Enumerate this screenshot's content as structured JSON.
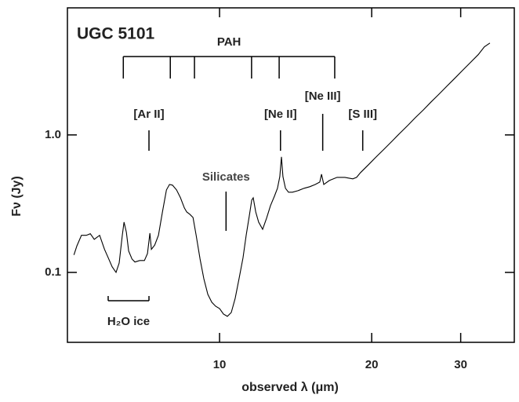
{
  "chart_data": {
    "type": "line",
    "title": "UGC 5101",
    "x_label": "observed λ (μm)",
    "y_label": "Fν (Jy)",
    "x_scale": "log",
    "y_scale": "log",
    "color": "#000000",
    "xlim": [
      5.0,
      38.3
    ],
    "ylim": [
      0.031,
      8.4
    ],
    "xticks": [
      10,
      20,
      30
    ],
    "yticks": [
      0.1,
      {
        "value": 1,
        "label": "1.0"
      }
    ],
    "x": [
      5.15,
      5.22,
      5.33,
      5.45,
      5.55,
      5.65,
      5.79,
      5.92,
      6.02,
      6.13,
      6.24,
      6.33,
      6.42,
      6.47,
      6.54,
      6.61,
      6.71,
      6.8,
      6.95,
      7.1,
      7.2,
      7.28,
      7.33,
      7.44,
      7.57,
      7.71,
      7.85,
      7.96,
      8.07,
      8.22,
      8.37,
      8.52,
      8.61,
      8.73,
      8.86,
      8.99,
      9.15,
      9.31,
      9.48,
      9.65,
      9.82,
      10.0,
      10.18,
      10.36,
      10.55,
      10.74,
      10.93,
      11.13,
      11.29,
      11.45,
      11.58,
      11.66,
      11.79,
      11.95,
      12.17,
      12.39,
      12.61,
      12.84,
      13.02,
      13.16,
      13.26,
      13.35,
      13.5,
      13.69,
      13.94,
      14.29,
      14.7,
      15.08,
      15.46,
      15.79,
      15.91,
      16.08,
      16.49,
      17.08,
      17.7,
      18.35,
      18.67,
      19.01,
      19.71,
      20.42,
      21.17,
      21.94,
      22.74,
      23.56,
      24.42,
      25.31,
      26.23,
      27.18,
      28.17,
      29.19,
      30.25,
      31.35,
      32.49,
      33.42,
      34.27
    ],
    "values": [
      0.134,
      0.156,
      0.186,
      0.186,
      0.191,
      0.174,
      0.186,
      0.147,
      0.128,
      0.11,
      0.1,
      0.117,
      0.186,
      0.232,
      0.196,
      0.143,
      0.125,
      0.119,
      0.122,
      0.122,
      0.137,
      0.193,
      0.147,
      0.158,
      0.186,
      0.275,
      0.398,
      0.436,
      0.431,
      0.398,
      0.349,
      0.294,
      0.275,
      0.265,
      0.251,
      0.186,
      0.125,
      0.09,
      0.0692,
      0.0607,
      0.0568,
      0.0546,
      0.0498,
      0.0479,
      0.0511,
      0.0648,
      0.09,
      0.128,
      0.186,
      0.258,
      0.336,
      0.349,
      0.275,
      0.232,
      0.206,
      0.248,
      0.306,
      0.358,
      0.409,
      0.498,
      0.692,
      0.498,
      0.409,
      0.383,
      0.383,
      0.393,
      0.409,
      0.42,
      0.436,
      0.454,
      0.518,
      0.436,
      0.466,
      0.491,
      0.491,
      0.479,
      0.491,
      0.532,
      0.607,
      0.692,
      0.789,
      0.9,
      1.03,
      1.17,
      1.34,
      1.52,
      1.74,
      1.98,
      2.26,
      2.58,
      2.94,
      3.36,
      3.83,
      4.37,
      4.66
    ],
    "pah": {
      "label": "PAH",
      "x": [
        6.45,
        7.99,
        8.92,
        11.57,
        13.12,
        16.9
      ]
    },
    "features": [
      {
        "label": "[Ar II]",
        "x": 7.25
      },
      {
        "label": "[Ne II]",
        "x": 13.2
      },
      {
        "label": "[Ne III]",
        "x": 16.0
      },
      {
        "label": "[S III]",
        "x": 19.2
      },
      {
        "label": "Silicates",
        "x": 10.3
      }
    ],
    "ice": {
      "label": "H₂O ice",
      "x": [
        6.02,
        7.25
      ]
    }
  }
}
